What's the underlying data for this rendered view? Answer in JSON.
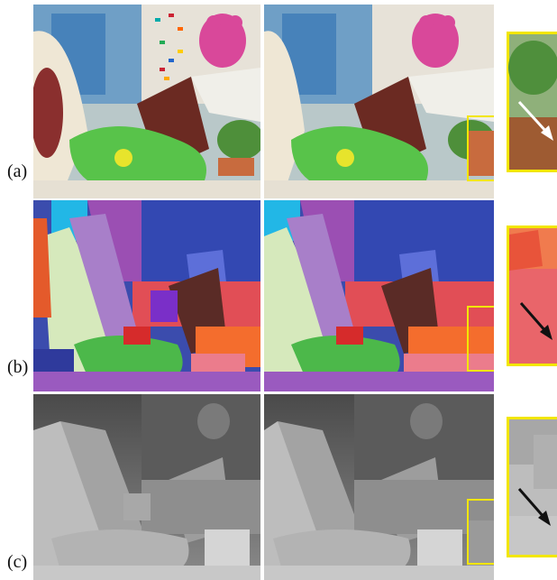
{
  "rows": [
    {
      "label": "(a)"
    },
    {
      "label": "(b)"
    },
    {
      "label": "(c)"
    }
  ],
  "colors": {
    "highlight_box": "#f2e600",
    "arrow_light": "#ffffff",
    "arrow_dark": "#111111"
  }
}
